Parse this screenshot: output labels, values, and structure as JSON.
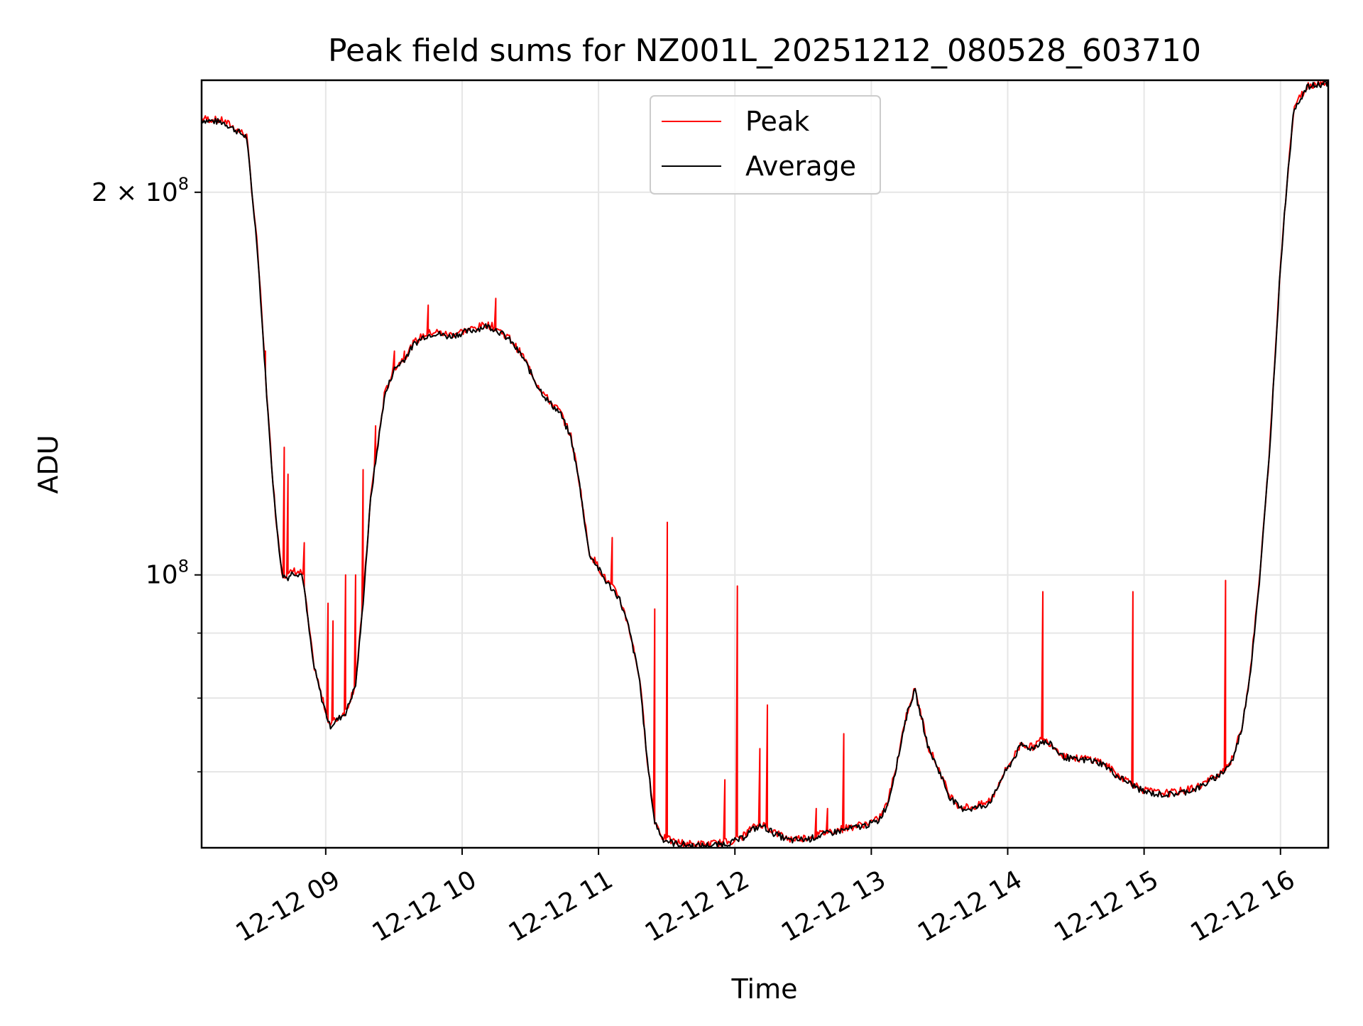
{
  "chart_data": {
    "type": "line",
    "title": "Peak field sums for NZ001L_20251212_080528_603710",
    "xlabel": "Time",
    "ylabel": "ADU",
    "yscale": "log",
    "ylim": [
      61000000,
      245000000
    ],
    "xlim_hours": [
      8.09,
      16.35
    ],
    "grid": true,
    "legend_position": "upper center",
    "x_ticks": [
      {
        "hour": 9,
        "label": "12-12 09"
      },
      {
        "hour": 10,
        "label": "12-12 10"
      },
      {
        "hour": 11,
        "label": "12-12 11"
      },
      {
        "hour": 12,
        "label": "12-12 12"
      },
      {
        "hour": 13,
        "label": "12-12 13"
      },
      {
        "hour": 14,
        "label": "12-12 14"
      },
      {
        "hour": 15,
        "label": "12-12 15"
      },
      {
        "hour": 16,
        "label": "12-12 16"
      }
    ],
    "y_major_ticks": [
      {
        "value": 100000000,
        "base": "10",
        "exp": "8",
        "prefix": ""
      },
      {
        "value": 200000000,
        "base": "10",
        "exp": "8",
        "prefix": "2 × "
      }
    ],
    "y_minor_ticks": [
      60000000,
      70000000,
      80000000,
      90000000
    ],
    "series": [
      {
        "name": "Average",
        "color": "#000000",
        "x_hours": [
          8.09,
          8.25,
          8.42,
          8.5,
          8.58,
          8.63,
          8.68,
          8.72,
          8.76,
          8.83,
          8.87,
          8.91,
          8.97,
          9.03,
          9.15,
          9.22,
          9.27,
          9.33,
          9.43,
          9.5,
          9.58,
          9.65,
          9.72,
          9.8,
          9.9,
          10.0,
          10.1,
          10.18,
          10.25,
          10.35,
          10.45,
          10.55,
          10.63,
          10.72,
          10.8,
          10.86,
          10.93,
          10.98,
          11.05,
          11.15,
          11.22,
          11.3,
          11.36,
          11.41,
          11.47,
          11.55,
          11.7,
          11.85,
          11.95,
          12.05,
          12.12,
          12.2,
          12.3,
          12.4,
          12.55,
          12.65,
          12.8,
          12.95,
          13.05,
          13.12,
          13.2,
          13.24,
          13.28,
          13.32,
          13.37,
          13.42,
          13.5,
          13.57,
          13.65,
          13.75,
          13.85,
          13.9,
          13.95,
          14.02,
          14.1,
          14.18,
          14.25,
          14.32,
          14.4,
          14.5,
          14.6,
          14.7,
          14.8,
          14.9,
          15.0,
          15.1,
          15.2,
          15.3,
          15.4,
          15.5,
          15.58,
          15.65,
          15.72,
          15.78,
          15.85,
          15.92,
          15.96,
          16.0,
          16.05,
          16.1,
          16.2,
          16.35
        ],
        "values": [
          228,
          227,
          221,
          180,
          132,
          112,
          100,
          99.5,
          100.5,
          100,
          92,
          85,
          80,
          76,
          78,
          82,
          94,
          115,
          138,
          145,
          148,
          152,
          154,
          155,
          154,
          155,
          156,
          157,
          156,
          153,
          148,
          141,
          137,
          134,
          128,
          118,
          104,
          102,
          99,
          96,
          91,
          83,
          71,
          64,
          62,
          61.5,
          61.2,
          61.3,
          61.5,
          62,
          63,
          63.5,
          62.5,
          61.8,
          62,
          62.5,
          63,
          63.5,
          64,
          66,
          72,
          76,
          79,
          81,
          77,
          73,
          70,
          67,
          65.5,
          65.5,
          66,
          67,
          69,
          71,
          73.5,
          73,
          74,
          73.5,
          72,
          71.5,
          71.5,
          71,
          69.5,
          68.5,
          67.5,
          67.2,
          67.2,
          67.5,
          68,
          69,
          70,
          71.5,
          76,
          84,
          100,
          125,
          148,
          175,
          205,
          233,
          242,
          244
        ]
      },
      {
        "name": "Peak",
        "color": "#ff0000",
        "spikes": [
          {
            "hour": 8.56,
            "value": 150
          },
          {
            "hour": 8.7,
            "value": 126
          },
          {
            "hour": 8.72,
            "value": 120
          },
          {
            "hour": 8.84,
            "value": 106
          },
          {
            "hour": 9.02,
            "value": 95
          },
          {
            "hour": 9.05,
            "value": 92
          },
          {
            "hour": 9.15,
            "value": 100
          },
          {
            "hour": 9.22,
            "value": 100
          },
          {
            "hour": 9.27,
            "value": 121
          },
          {
            "hour": 9.37,
            "value": 131
          },
          {
            "hour": 9.5,
            "value": 150
          },
          {
            "hour": 9.58,
            "value": 150
          },
          {
            "hour": 9.75,
            "value": 163
          },
          {
            "hour": 10.25,
            "value": 165
          },
          {
            "hour": 11.1,
            "value": 107
          },
          {
            "hour": 11.41,
            "value": 94
          },
          {
            "hour": 11.5,
            "value": 110
          },
          {
            "hour": 11.93,
            "value": 69
          },
          {
            "hour": 12.02,
            "value": 98
          },
          {
            "hour": 12.18,
            "value": 73
          },
          {
            "hour": 12.24,
            "value": 79
          },
          {
            "hour": 12.6,
            "value": 65.5
          },
          {
            "hour": 12.68,
            "value": 65.5
          },
          {
            "hour": 12.8,
            "value": 75
          },
          {
            "hour": 14.26,
            "value": 97
          },
          {
            "hour": 14.92,
            "value": 97
          },
          {
            "hour": 15.6,
            "value": 99
          }
        ]
      }
    ],
    "legend": [
      "Peak",
      "Average"
    ]
  }
}
